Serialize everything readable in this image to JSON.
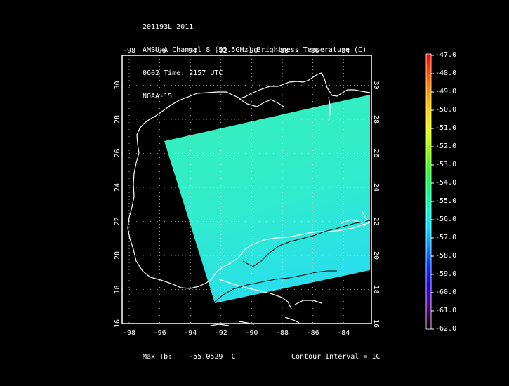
{
  "header": {
    "line1": "201193L 2011",
    "line2": "AMSU-A Channel 8 (55.5GHz) Brightness Temperature (C)",
    "line3": "0602 Time: 2157 UTC",
    "line4": "NOAA-15"
  },
  "map": {
    "lon_ticks": [
      "-98",
      "-96",
      "-94",
      "-92",
      "-90",
      "-88",
      "-86",
      "-84"
    ],
    "lat_ticks": [
      "16",
      "18",
      "20",
      "22",
      "24",
      "26",
      "28",
      "30"
    ],
    "swath_color": "#33f0c0",
    "swath_color_south": "#2ee0e8",
    "coast_color": "#ffffff",
    "contour_color": "#000000"
  },
  "colorbar": {
    "labels": [
      "-47.0",
      "-48.0",
      "-49.0",
      "-50.0",
      "-51.0",
      "-52.0",
      "-53.0",
      "-54.0",
      "-55.0",
      "-56.0",
      "-57.0",
      "-58.0",
      "-59.0",
      "-60.0",
      "-61.0",
      "-62.0"
    ],
    "colors": [
      "#ff0000",
      "#ff4000",
      "#ff8000",
      "#ffbf00",
      "#ffff00",
      "#bfff00",
      "#40ff00",
      "#00ff40",
      "#00ffa0",
      "#00ffe0",
      "#00c0ff",
      "#0060ff",
      "#0000ff",
      "#4000c0",
      "#600080",
      "#000000"
    ]
  },
  "footer": {
    "max_label": "Max Tb:",
    "max_value": "-55.0529",
    "max_unit": "C",
    "contour": "Contour Interval = 1C"
  }
}
